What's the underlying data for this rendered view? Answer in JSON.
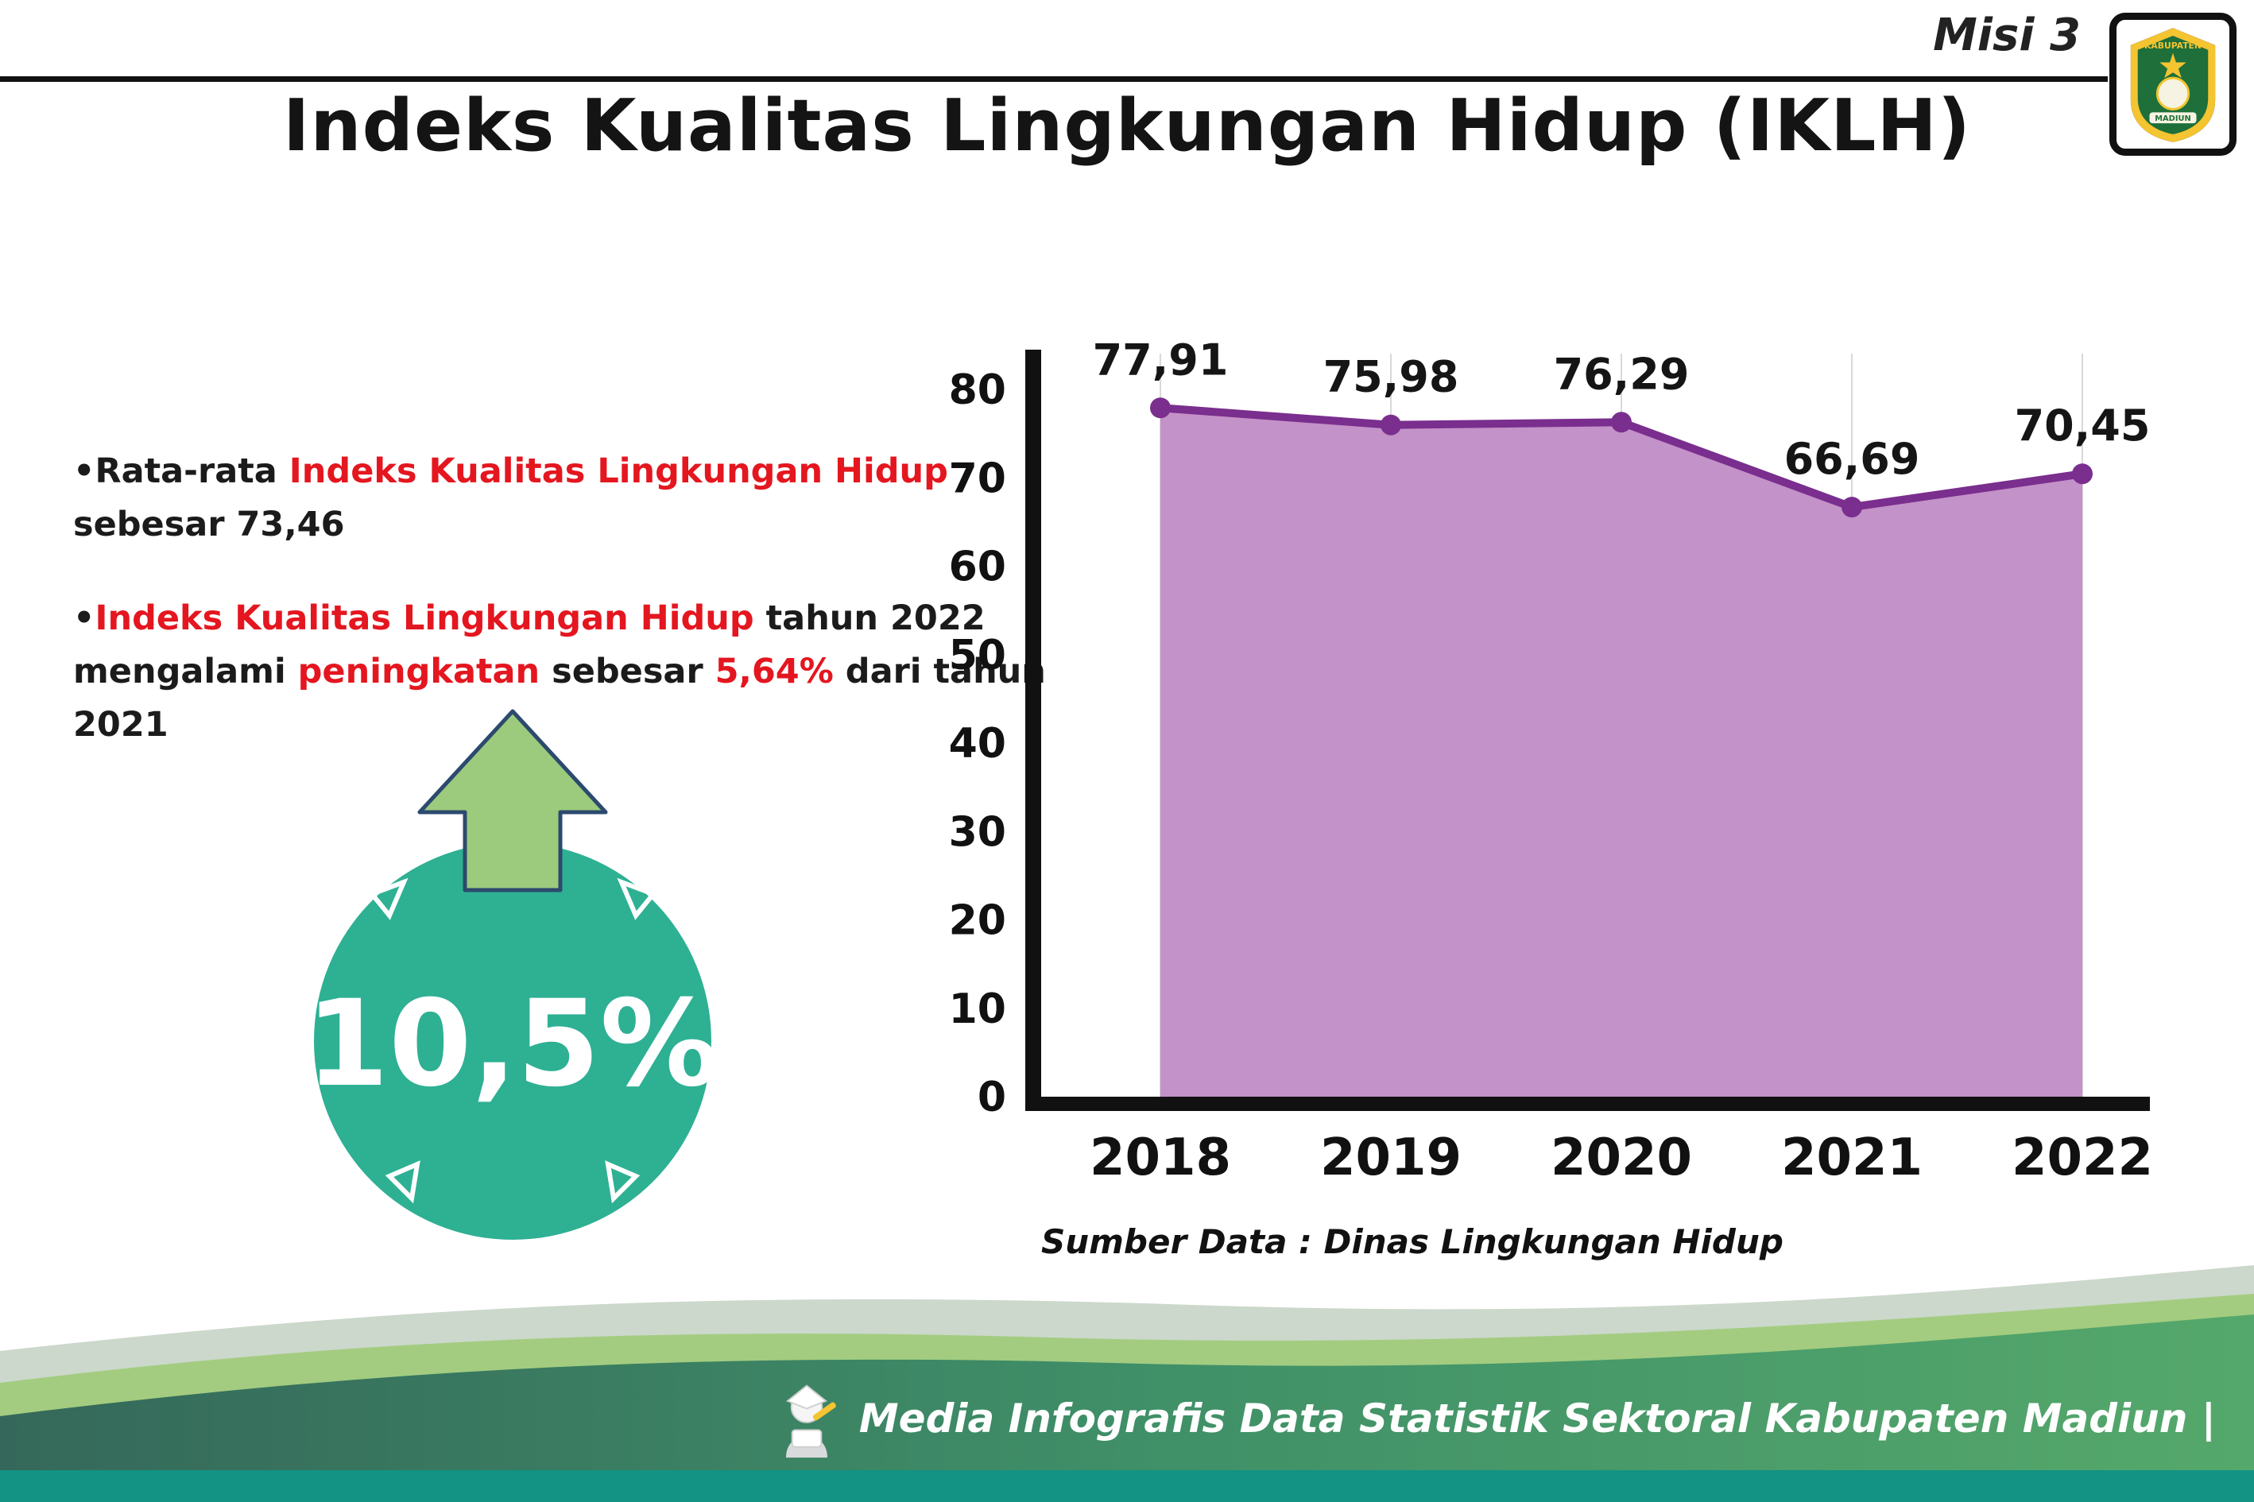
{
  "colors": {
    "red": "#e4161f",
    "teal": "#2eb093",
    "arrow": "#9ccb7d",
    "line": "#7a2e8e",
    "fill": "#c392c8"
  },
  "header": {
    "misi": "Misi 3",
    "title": "Indeks Kualitas Lingkungan Hidup (IKLH)",
    "logo_top_text": "KABUPATEN",
    "logo_bottom_text": "MADIUN"
  },
  "bullets": [
    {
      "segments": [
        {
          "t": "•Rata-rata ",
          "red": false
        },
        {
          "t": "Indeks Kualitas Lingkungan Hidup",
          "red": true
        },
        {
          "t": " sebesar 73,46",
          "red": false
        }
      ]
    },
    {
      "segments": [
        {
          "t": "•",
          "red": false
        },
        {
          "t": "Indeks Kualitas Lingkungan Hidup",
          "red": true
        },
        {
          "t": " tahun 2022 mengalami ",
          "red": false
        },
        {
          "t": "peningkatan",
          "red": true
        },
        {
          "t": " sebesar ",
          "red": false
        },
        {
          "t": "5,64%",
          "red": true
        },
        {
          "t": " dari tahun 2021",
          "red": false
        }
      ]
    }
  ],
  "badge": {
    "value": "10,5%"
  },
  "chart_data": {
    "type": "area",
    "categories": [
      "2018",
      "2019",
      "2020",
      "2021",
      "2022"
    ],
    "values": [
      77.91,
      75.98,
      76.29,
      66.69,
      70.45
    ],
    "value_labels": [
      "77,91",
      "75,98",
      "76,29",
      "66,69",
      "70,45"
    ],
    "title": "",
    "xlabel": "",
    "ylabel": "",
    "ylim": [
      0,
      80
    ],
    "yticks": [
      0,
      10,
      20,
      30,
      40,
      50,
      60,
      70,
      80
    ],
    "grid": "vertical-light",
    "legend": "none",
    "line_color": "#7a2e8e",
    "fill_color": "#c392c8",
    "source": "Sumber Data : Dinas Lingkungan Hidup"
  },
  "footer": {
    "text": "Media Infografis Data Statistik Sektoral Kabupaten Madiun |"
  }
}
